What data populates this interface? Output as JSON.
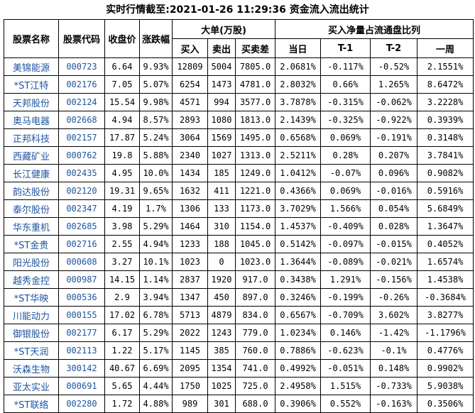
{
  "title": "实时行情截至:2021-01-26 11:29:36 资金流入流出统计",
  "colors": {
    "link_blue": "#1E55A0",
    "border": "#000000",
    "text": "#000000",
    "background": "#ffffff"
  },
  "table": {
    "headers": {
      "stock_name": "股票名称",
      "stock_code": "股票代码",
      "close_price": "收盘价",
      "change_pct": "涨跌幅",
      "big_orders_group": "大单(万股)",
      "buy": "买入",
      "sell": "卖出",
      "buy_sell_diff": "买卖差",
      "net_buy_group": "买入净量占流通盘比列",
      "today": "当日",
      "t1": "T-1",
      "t2": "T-2",
      "week": "一周"
    },
    "rows": [
      {
        "name": "美锦能源",
        "code": "000723",
        "close": "6.64",
        "change": "9.93%",
        "buy": "12809",
        "sell": "5004",
        "diff": "7805.0",
        "today": "2.0681%",
        "t1": "-0.117%",
        "t2": "-0.52%",
        "week": "2.1551%"
      },
      {
        "name": "*ST江特",
        "code": "002176",
        "close": "7.05",
        "change": "5.07%",
        "buy": "6254",
        "sell": "1473",
        "diff": "4781.0",
        "today": "2.8032%",
        "t1": "0.66%",
        "t2": "1.265%",
        "week": "8.6472%"
      },
      {
        "name": "天邦股份",
        "code": "002124",
        "close": "15.54",
        "change": "9.98%",
        "buy": "4571",
        "sell": "994",
        "diff": "3577.0",
        "today": "3.7878%",
        "t1": "-0.315%",
        "t2": "-0.062%",
        "week": "3.2228%"
      },
      {
        "name": "奥马电器",
        "code": "002668",
        "close": "4.94",
        "change": "8.57%",
        "buy": "2893",
        "sell": "1080",
        "diff": "1813.0",
        "today": "2.1439%",
        "t1": "-0.325%",
        "t2": "-0.922%",
        "week": "0.3939%"
      },
      {
        "name": "正邦科技",
        "code": "002157",
        "close": "17.87",
        "change": "5.24%",
        "buy": "3064",
        "sell": "1569",
        "diff": "1495.0",
        "today": "0.6568%",
        "t1": "0.069%",
        "t2": "-0.191%",
        "week": "0.3148%"
      },
      {
        "name": "西藏矿业",
        "code": "000762",
        "close": "19.8",
        "change": "5.88%",
        "buy": "2340",
        "sell": "1027",
        "diff": "1313.0",
        "today": "2.5211%",
        "t1": "0.28%",
        "t2": "0.207%",
        "week": "3.7841%"
      },
      {
        "name": "长江健康",
        "code": "002435",
        "close": "4.95",
        "change": "10.0%",
        "buy": "1434",
        "sell": "185",
        "diff": "1249.0",
        "today": "1.0412%",
        "t1": "-0.07%",
        "t2": "0.096%",
        "week": "0.9082%"
      },
      {
        "name": "韵达股份",
        "code": "002120",
        "close": "19.31",
        "change": "9.65%",
        "buy": "1632",
        "sell": "411",
        "diff": "1221.0",
        "today": "0.4366%",
        "t1": "0.069%",
        "t2": "-0.016%",
        "week": "0.5916%"
      },
      {
        "name": "泰尔股份",
        "code": "002347",
        "close": "4.19",
        "change": "1.7%",
        "buy": "1306",
        "sell": "133",
        "diff": "1173.0",
        "today": "3.7029%",
        "t1": "1.566%",
        "t2": "0.054%",
        "week": "5.6849%"
      },
      {
        "name": "华东重机",
        "code": "002685",
        "close": "3.98",
        "change": "5.29%",
        "buy": "1464",
        "sell": "310",
        "diff": "1154.0",
        "today": "1.4537%",
        "t1": "-0.409%",
        "t2": "0.028%",
        "week": "1.3647%"
      },
      {
        "name": "*ST金贵",
        "code": "002716",
        "close": "2.55",
        "change": "4.94%",
        "buy": "1233",
        "sell": "188",
        "diff": "1045.0",
        "today": "0.5142%",
        "t1": "-0.097%",
        "t2": "-0.015%",
        "week": "0.4052%"
      },
      {
        "name": "阳光股份",
        "code": "000608",
        "close": "3.27",
        "change": "10.1%",
        "buy": "1023",
        "sell": "0",
        "diff": "1023.0",
        "today": "1.3644%",
        "t1": "-0.089%",
        "t2": "-0.021%",
        "week": "1.6574%"
      },
      {
        "name": "越秀金控",
        "code": "000987",
        "close": "14.15",
        "change": "1.14%",
        "buy": "2837",
        "sell": "1920",
        "diff": "917.0",
        "today": "0.3438%",
        "t1": "1.291%",
        "t2": "-0.156%",
        "week": "1.4538%"
      },
      {
        "name": "*ST华映",
        "code": "000536",
        "close": "2.9",
        "change": "3.94%",
        "buy": "1347",
        "sell": "450",
        "diff": "897.0",
        "today": "0.3246%",
        "t1": "-0.199%",
        "t2": "-0.26%",
        "week": "-0.3684%"
      },
      {
        "name": "川能动力",
        "code": "000155",
        "close": "17.02",
        "change": "6.78%",
        "buy": "5713",
        "sell": "4879",
        "diff": "834.0",
        "today": "0.6567%",
        "t1": "-0.709%",
        "t2": "3.602%",
        "week": "3.8277%"
      },
      {
        "name": "御银股份",
        "code": "002177",
        "close": "6.17",
        "change": "5.29%",
        "buy": "2022",
        "sell": "1243",
        "diff": "779.0",
        "today": "1.0234%",
        "t1": "0.146%",
        "t2": "-1.42%",
        "week": "-1.1796%"
      },
      {
        "name": "*ST天润",
        "code": "002113",
        "close": "1.22",
        "change": "5.17%",
        "buy": "1145",
        "sell": "385",
        "diff": "760.0",
        "today": "0.7886%",
        "t1": "-0.623%",
        "t2": "-0.1%",
        "week": "0.4776%"
      },
      {
        "name": "沃森生物",
        "code": "300142",
        "close": "40.67",
        "change": "6.69%",
        "buy": "2095",
        "sell": "1354",
        "diff": "741.0",
        "today": "0.4992%",
        "t1": "-0.051%",
        "t2": "0.148%",
        "week": "0.9902%"
      },
      {
        "name": "亚太实业",
        "code": "000691",
        "close": "5.65",
        "change": "4.44%",
        "buy": "1750",
        "sell": "1025",
        "diff": "725.0",
        "today": "2.4958%",
        "t1": "1.515%",
        "t2": "-0.733%",
        "week": "5.9038%"
      },
      {
        "name": "*ST联络",
        "code": "002280",
        "close": "1.72",
        "change": "4.88%",
        "buy": "989",
        "sell": "301",
        "diff": "688.0",
        "today": "0.3906%",
        "t1": "0.552%",
        "t2": "-0.163%",
        "week": "0.3506%"
      }
    ]
  }
}
